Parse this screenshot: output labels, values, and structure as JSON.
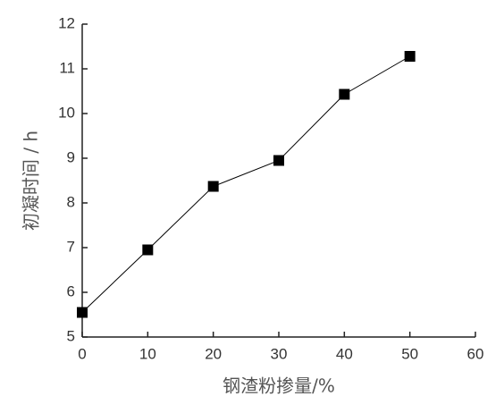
{
  "chart_data": {
    "type": "line",
    "x_label": "钢渣粉掺量/%",
    "y_label": "初凝时间 / h",
    "x": [
      0,
      10,
      20,
      30,
      40,
      50
    ],
    "series": [
      {
        "name": null,
        "color": "#000000",
        "values": [
          5.55,
          6.95,
          8.37,
          8.95,
          10.43,
          11.28
        ]
      }
    ],
    "xlim": [
      0,
      60
    ],
    "xticks": [
      0,
      10,
      20,
      30,
      40,
      50,
      60
    ],
    "ylim": [
      5,
      12
    ],
    "yticks": [
      5,
      6,
      7,
      8,
      9,
      10,
      11,
      12
    ],
    "grid": false
  }
}
